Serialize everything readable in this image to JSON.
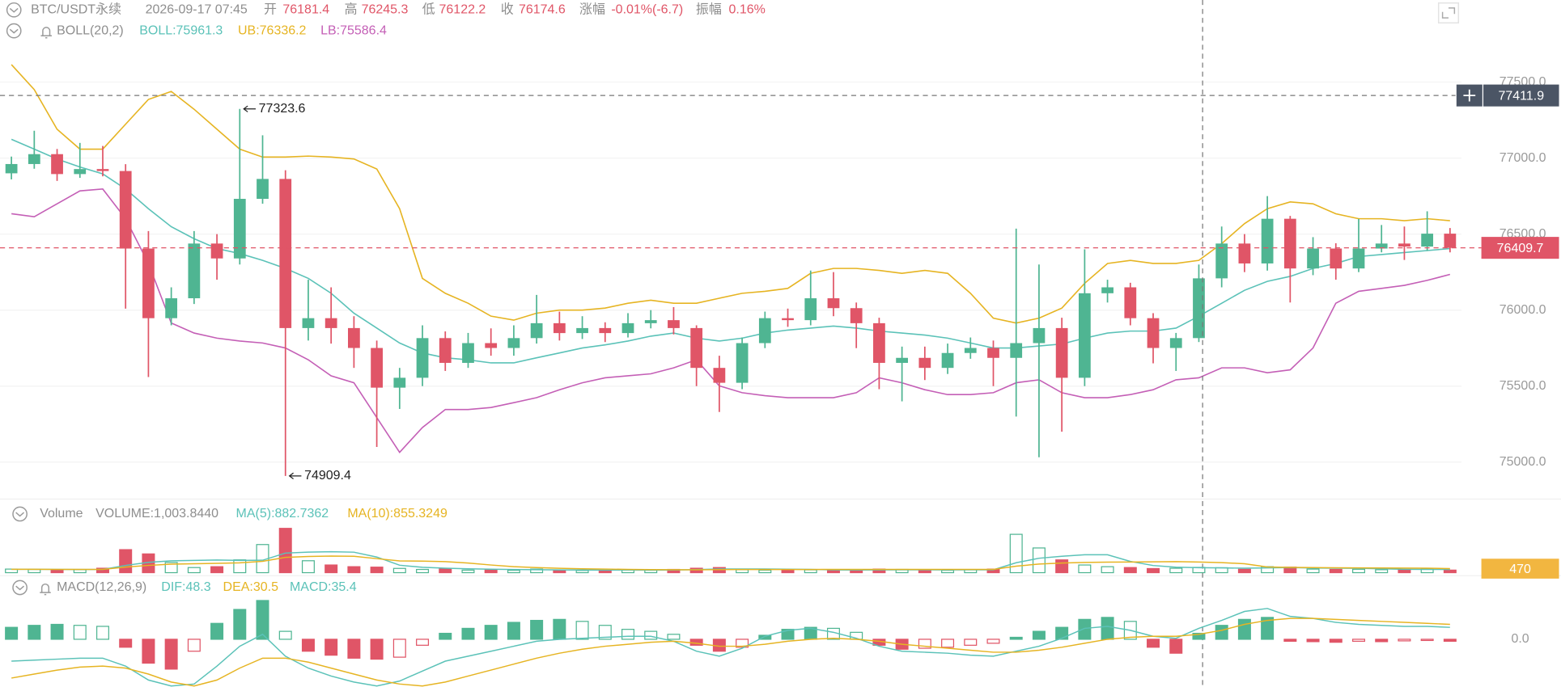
{
  "chart_data": [
    {
      "type": "candlestick",
      "title": "BTC/USDT永续",
      "subtitle": "2026-09-17 07:45",
      "info": [
        {
          "label": "开",
          "value": 76181.4
        },
        {
          "label": "高",
          "value": 76245.3
        },
        {
          "label": "低",
          "value": 76122.2
        },
        {
          "label": "收",
          "value": 76174.6
        },
        {
          "label": "涨幅",
          "value": "-0.01%(-6.7)"
        },
        {
          "label": "振幅",
          "value": "0.16%"
        }
      ],
      "indicator": "BOLL(20,2)",
      "up_color": "#4fb592",
      "down_color": "#e05567",
      "candles": [
        [
          76900,
          77010,
          76860,
          76961
        ],
        [
          76961,
          77180,
          76930,
          77026
        ],
        [
          77026,
          77060,
          76850,
          76895
        ],
        [
          76895,
          77100,
          76870,
          76928
        ],
        [
          76928,
          77080,
          76880,
          76915
        ],
        [
          76915,
          76960,
          76010,
          76405
        ],
        [
          76405,
          76520,
          75560,
          75947
        ],
        [
          75947,
          76150,
          75900,
          76078
        ],
        [
          76078,
          76520,
          76040,
          76438
        ],
        [
          76438,
          76500,
          76200,
          76340
        ],
        [
          76340,
          77323.6,
          76300,
          76732
        ],
        [
          76732,
          77150,
          76700,
          76863
        ],
        [
          76863,
          76920,
          74909.4,
          75882
        ],
        [
          75882,
          76200,
          75800,
          75947
        ],
        [
          75947,
          76150,
          75780,
          75882
        ],
        [
          75882,
          75960,
          75620,
          75751
        ],
        [
          75751,
          75800,
          75100,
          75490
        ],
        [
          75490,
          75620,
          75350,
          75555
        ],
        [
          75555,
          75900,
          75500,
          75816
        ],
        [
          75816,
          75860,
          75600,
          75653
        ],
        [
          75653,
          75850,
          75620,
          75783
        ],
        [
          75783,
          75880,
          75700,
          75751
        ],
        [
          75751,
          75900,
          75700,
          75816
        ],
        [
          75816,
          76100,
          75780,
          75914
        ],
        [
          75914,
          75990,
          75800,
          75849
        ],
        [
          75849,
          75960,
          75810,
          75882
        ],
        [
          75882,
          75920,
          75790,
          75849
        ],
        [
          75849,
          75980,
          75820,
          75914
        ],
        [
          75914,
          76000,
          75880,
          75934
        ],
        [
          75934,
          76020,
          75840,
          75882
        ],
        [
          75882,
          75900,
          75500,
          75620
        ],
        [
          75620,
          75700,
          75330,
          75522
        ],
        [
          75522,
          75820,
          75480,
          75783
        ],
        [
          75783,
          75990,
          75750,
          75947
        ],
        [
          75947,
          76010,
          75890,
          75934
        ],
        [
          75934,
          76260,
          75900,
          76078
        ],
        [
          76078,
          76250,
          75960,
          76013
        ],
        [
          76013,
          76050,
          75750,
          75914
        ],
        [
          75914,
          75950,
          75480,
          75653
        ],
        [
          75653,
          75760,
          75400,
          75686
        ],
        [
          75686,
          75760,
          75540,
          75620
        ],
        [
          75620,
          75780,
          75580,
          75718
        ],
        [
          75718,
          75820,
          75680,
          75751
        ],
        [
          75751,
          75800,
          75500,
          75686
        ],
        [
          75686,
          76536,
          75300,
          75783
        ],
        [
          75783,
          76300,
          75032,
          75882
        ],
        [
          75882,
          75950,
          75200,
          75555
        ],
        [
          75555,
          76400,
          75500,
          76111
        ],
        [
          76111,
          76200,
          76050,
          76150
        ],
        [
          76150,
          76180,
          75900,
          75947
        ],
        [
          75947,
          75980,
          75650,
          75751
        ],
        [
          75751,
          75850,
          75600,
          75816
        ],
        [
          75816,
          76300,
          75790,
          76209
        ],
        [
          76209,
          76550,
          76150,
          76438
        ],
        [
          76438,
          76500,
          76250,
          76307
        ],
        [
          76307,
          76750,
          76260,
          76601
        ],
        [
          76601,
          76620,
          76050,
          76274
        ],
        [
          76274,
          76480,
          76230,
          76405
        ],
        [
          76405,
          76440,
          76200,
          76274
        ],
        [
          76274,
          76600,
          76250,
          76405
        ],
        [
          76405,
          76560,
          76380,
          76438
        ],
        [
          76438,
          76550,
          76330,
          76418
        ],
        [
          76418,
          76650,
          76390,
          76503
        ],
        [
          76503,
          76540,
          76380,
          76409.7
        ]
      ],
      "series": [
        {
          "name": "BOLL:75961.3",
          "color": "#5bc2b8",
          "values": [
            77124,
            77059,
            76994,
            76941,
            76896,
            76797,
            76667,
            76549,
            76470,
            76405,
            76372,
            76327,
            76274,
            76209,
            76111,
            75980,
            75882,
            75784,
            75718,
            75686,
            75673,
            75653,
            75653,
            75686,
            75718,
            75751,
            75771,
            75797,
            75829,
            75849,
            75816,
            75797,
            75816,
            75849,
            75869,
            75882,
            75895,
            75882,
            75862,
            75849,
            75836,
            75816,
            75784,
            75751,
            75751,
            75764,
            75777,
            75816,
            75849,
            75862,
            75862,
            75882,
            75960,
            76045,
            76130,
            76189,
            76222,
            76274,
            76307,
            76353,
            76366,
            76379,
            76392,
            76405
          ]
        },
        {
          "name": "UB:76336.2",
          "color": "#e6b422",
          "values": [
            77615,
            77451,
            77190,
            77059,
            77059,
            77223,
            77386,
            77438,
            77321,
            77190,
            77059,
            77007,
            77007,
            77013,
            77007,
            76994,
            76928,
            76667,
            76209,
            76111,
            76045,
            75960,
            75934,
            75980,
            76000,
            76000,
            76013,
            76045,
            76065,
            76045,
            76045,
            76078,
            76111,
            76124,
            76143,
            76242,
            76274,
            76274,
            76261,
            76242,
            76261,
            76242,
            76111,
            75947,
            75915,
            75947,
            76013,
            76176,
            76307,
            76327,
            76307,
            76307,
            76327,
            76438,
            76569,
            76667,
            76712,
            76699,
            76634,
            76601,
            76601,
            76588,
            76601,
            76588
          ]
        },
        {
          "name": "LB:75586.4",
          "color": "#c45fb6",
          "values": [
            76634,
            76614,
            76699,
            76784,
            76797,
            76601,
            76307,
            75915,
            75849,
            75816,
            75797,
            75784,
            75751,
            75673,
            75568,
            75522,
            75293,
            75064,
            75228,
            75346,
            75346,
            75359,
            75391,
            75424,
            75476,
            75522,
            75555,
            75568,
            75581,
            75620,
            75673,
            75502,
            75457,
            75437,
            75424,
            75424,
            75424,
            75457,
            75555,
            75522,
            75476,
            75444,
            75444,
            75457,
            75522,
            75542,
            75457,
            75424,
            75424,
            75444,
            75476,
            75542,
            75555,
            75620,
            75620,
            75588,
            75607,
            75751,
            76045,
            76124,
            76143,
            76163,
            76196,
            76235
          ]
        }
      ],
      "crosshair_price": 77411.9,
      "ylim": [
        74770,
        78040
      ],
      "yticks": [
        {
          "value": 75000,
          "label": "75000.0"
        },
        {
          "value": 75500,
          "label": "75500.0"
        },
        {
          "value": 76000,
          "label": "76000.0"
        },
        {
          "value": 76500,
          "label": "76500.0"
        },
        {
          "value": 77000,
          "label": "77000.0"
        },
        {
          "value": 77500,
          "label": "77500.0"
        }
      ],
      "grid": true
    },
    {
      "type": "bar",
      "title": "Volume",
      "name": "VOLUME:1,003.8440",
      "values": [
        420,
        380,
        300,
        350,
        520,
        2700,
        2200,
        1200,
        600,
        700,
        1500,
        3300,
        5200,
        1400,
        900,
        700,
        650,
        500,
        380,
        420,
        300,
        350,
        280,
        420,
        300,
        260,
        310,
        330,
        290,
        380,
        520,
        600,
        350,
        300,
        280,
        330,
        310,
        360,
        420,
        380,
        300,
        280,
        350,
        420,
        4500,
        2900,
        1500,
        900,
        700,
        600,
        480,
        520,
        620,
        580,
        400,
        700,
        650,
        420,
        380,
        400,
        350,
        380,
        420,
        300
      ],
      "series": [
        {
          "name": "MA(5):882.7362",
          "color": "#5bc2b8",
          "values": [
            400,
            400,
            380,
            370,
            390,
            850,
            1210,
            1390,
            1440,
            1480,
            1440,
            1460,
            2300,
            2420,
            2460,
            2400,
            1830,
            870,
            630,
            530,
            450,
            410,
            370,
            350,
            330,
            320,
            300,
            310,
            300,
            310,
            360,
            430,
            430,
            430,
            410,
            390,
            330,
            320,
            330,
            340,
            340,
            330,
            340,
            340,
            1170,
            1690,
            1930,
            2100,
            2100,
            1320,
            840,
            640,
            580,
            560,
            520,
            560,
            590,
            550,
            530,
            510,
            460,
            400,
            390,
            370
          ]
        },
        {
          "name": "MA(10):855.3249",
          "color": "#e6b422",
          "values": [
            400,
            400,
            390,
            380,
            390,
            650,
            850,
            1000,
            1050,
            1100,
            1150,
            1330,
            1800,
            1900,
            1950,
            1920,
            1650,
            1380,
            1350,
            1290,
            1130,
            900,
            700,
            600,
            510,
            460,
            420,
            390,
            360,
            350,
            340,
            360,
            370,
            370,
            370,
            370,
            380,
            380,
            380,
            390,
            380,
            380,
            380,
            380,
            760,
            1010,
            1130,
            1200,
            1240,
            1250,
            1270,
            1290,
            1250,
            1180,
            1050,
            670,
            620,
            600,
            570,
            560,
            550,
            540,
            520,
            480
          ]
        }
      ],
      "ylim": [
        0,
        5600
      ],
      "yticks": [
        470
      ],
      "tick_color": "#f2b640"
    },
    {
      "type": "macd",
      "title": "MACD(12,26,9)",
      "name": "MACD:35.4",
      "values": [
        60,
        70,
        75,
        70,
        65,
        -40,
        -120,
        -150,
        -60,
        80,
        150,
        195,
        40,
        -60,
        -80,
        -95,
        -100,
        -90,
        -30,
        30,
        55,
        70,
        85,
        95,
        100,
        90,
        70,
        50,
        40,
        25,
        -30,
        -60,
        -40,
        20,
        50,
        60,
        55,
        35,
        -30,
        -50,
        -45,
        -40,
        -30,
        -20,
        10,
        40,
        60,
        100,
        110,
        90,
        -40,
        -70,
        30,
        70,
        100,
        110,
        -10,
        -12,
        -15,
        -10,
        -12,
        -8,
        -6,
        -10
      ],
      "series": [
        {
          "name": "DIF:48.3",
          "color": "#5bc2b8",
          "values": [
            -110,
            -105,
            -100,
            -95,
            -95,
            -135,
            -205,
            -235,
            -225,
            -135,
            -35,
            25,
            -85,
            -145,
            -185,
            -215,
            -235,
            -210,
            -160,
            -110,
            -85,
            -60,
            -35,
            -10,
            0,
            5,
            10,
            15,
            15,
            -10,
            -60,
            -85,
            -45,
            15,
            45,
            55,
            35,
            5,
            -35,
            -60,
            -65,
            -70,
            -80,
            -85,
            -60,
            -35,
            5,
            55,
            65,
            45,
            15,
            5,
            55,
            95,
            140,
            155,
            115,
            105,
            85,
            75,
            70,
            65,
            65,
            60
          ]
        },
        {
          "name": "DEA:30.5",
          "color": "#e6b422",
          "values": [
            -195,
            -175,
            -155,
            -140,
            -135,
            -145,
            -175,
            -215,
            -235,
            -205,
            -145,
            -95,
            -95,
            -115,
            -145,
            -175,
            -205,
            -225,
            -235,
            -215,
            -185,
            -155,
            -125,
            -95,
            -70,
            -50,
            -35,
            -25,
            -15,
            -10,
            -20,
            -35,
            -35,
            -25,
            -10,
            0,
            5,
            0,
            -10,
            -25,
            -35,
            -45,
            -55,
            -65,
            -65,
            -55,
            -40,
            -20,
            0,
            10,
            15,
            15,
            25,
            45,
            75,
            95,
            105,
            105,
            100,
            95,
            90,
            85,
            80,
            75
          ]
        }
      ],
      "ylim": [
        -240,
        315
      ],
      "yticks": [
        {
          "value": 0,
          "label": "0.0"
        }
      ]
    }
  ]
}
